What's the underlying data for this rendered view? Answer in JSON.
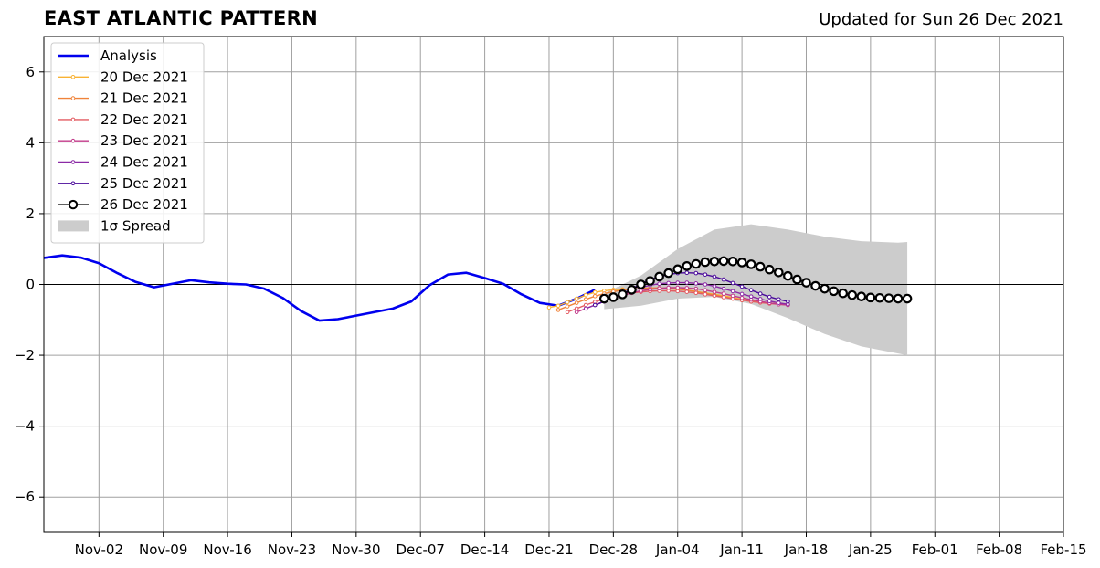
{
  "title": "EAST ATLANTIC PATTERN",
  "subtitle": "Updated for Sun 26 Dec 2021",
  "chart_data": {
    "type": "line",
    "title": "EAST ATLANTIC PATTERN",
    "xlabel": "",
    "ylabel": "",
    "xlim": [
      "2021-10-27",
      "2022-02-15"
    ],
    "ylim": [
      -7,
      7
    ],
    "grid": true,
    "legend_position": "top-left",
    "x_ticks": [
      "Nov-02",
      "Nov-09",
      "Nov-16",
      "Nov-23",
      "Nov-30",
      "Dec-07",
      "Dec-14",
      "Dec-21",
      "Dec-28",
      "Jan-04",
      "Jan-11",
      "Jan-18",
      "Jan-25",
      "Feb-01",
      "Feb-08",
      "Feb-15"
    ],
    "y_ticks": [
      "−6",
      "−4",
      "−2",
      "0",
      "2",
      "4",
      "6"
    ],
    "analysis": {
      "name": "Analysis",
      "color": "#0000ee",
      "x": [
        "2021-10-27",
        "2021-10-29",
        "2021-10-31",
        "2021-11-02",
        "2021-11-04",
        "2021-11-06",
        "2021-11-08",
        "2021-11-10",
        "2021-11-12",
        "2021-11-14",
        "2021-11-16",
        "2021-11-18",
        "2021-11-20",
        "2021-11-22",
        "2021-11-24",
        "2021-11-26",
        "2021-11-28",
        "2021-11-30",
        "2021-12-02",
        "2021-12-04",
        "2021-12-06",
        "2021-12-08",
        "2021-12-10",
        "2021-12-12",
        "2021-12-14",
        "2021-12-16",
        "2021-12-18",
        "2021-12-20",
        "2021-12-22",
        "2021-12-24",
        "2021-12-26"
      ],
      "y": [
        0.75,
        0.82,
        0.76,
        0.6,
        0.32,
        0.07,
        -0.08,
        0.02,
        0.12,
        0.06,
        0.02,
        0.0,
        -0.12,
        -0.38,
        -0.75,
        -1.02,
        -0.98,
        -0.88,
        -0.78,
        -0.68,
        -0.48,
        -0.02,
        0.28,
        0.33,
        0.18,
        0.02,
        -0.28,
        -0.52,
        -0.6,
        -0.4,
        -0.15
      ]
    },
    "forecasts": [
      {
        "name": "20 Dec 2021",
        "color": "#f9b233",
        "x0": "2021-12-21",
        "y": [
          -0.65,
          -0.6,
          -0.5,
          -0.4,
          -0.3,
          -0.22,
          -0.18,
          -0.15,
          -0.14,
          -0.13,
          -0.12,
          -0.12,
          -0.11,
          -0.12,
          -0.14,
          -0.16,
          -0.2,
          -0.24,
          -0.28,
          -0.32,
          -0.37,
          -0.42,
          -0.46,
          -0.5,
          -0.53,
          -0.55,
          -0.56
        ]
      },
      {
        "name": "21 Dec 2021",
        "color": "#f0833a",
        "x0": "2021-12-22",
        "y": [
          -0.72,
          -0.62,
          -0.52,
          -0.42,
          -0.33,
          -0.26,
          -0.2,
          -0.16,
          -0.13,
          -0.11,
          -0.1,
          -0.1,
          -0.11,
          -0.13,
          -0.16,
          -0.2,
          -0.25,
          -0.3,
          -0.35,
          -0.4,
          -0.44,
          -0.48,
          -0.51,
          -0.53,
          -0.55,
          -0.56
        ]
      },
      {
        "name": "22 Dec 2021",
        "color": "#e35b62",
        "x0": "2021-12-23",
        "y": [
          -0.78,
          -0.68,
          -0.58,
          -0.49,
          -0.41,
          -0.34,
          -0.28,
          -0.24,
          -0.21,
          -0.19,
          -0.18,
          -0.18,
          -0.19,
          -0.21,
          -0.24,
          -0.28,
          -0.32,
          -0.36,
          -0.4,
          -0.44,
          -0.48,
          -0.51,
          -0.54,
          -0.56,
          -0.58
        ]
      },
      {
        "name": "23 Dec 2021",
        "color": "#c23a8a",
        "x0": "2021-12-24",
        "y": [
          -0.78,
          -0.68,
          -0.58,
          -0.48,
          -0.39,
          -0.31,
          -0.24,
          -0.18,
          -0.14,
          -0.11,
          -0.09,
          -0.09,
          -0.1,
          -0.12,
          -0.16,
          -0.21,
          -0.26,
          -0.32,
          -0.38,
          -0.43,
          -0.48,
          -0.52,
          -0.56,
          -0.58
        ]
      },
      {
        "name": "24 Dec 2021",
        "color": "#8b2aa6",
        "x0": "2021-12-25",
        "y": [
          -0.68,
          -0.58,
          -0.48,
          -0.38,
          -0.28,
          -0.18,
          -0.09,
          -0.02,
          0.02,
          0.04,
          0.05,
          0.05,
          0.03,
          0.0,
          -0.05,
          -0.12,
          -0.19,
          -0.27,
          -0.34,
          -0.41,
          -0.47,
          -0.52,
          -0.56
        ]
      },
      {
        "name": "25 Dec 2021",
        "color": "#4a0a9a",
        "x0": "2021-12-26",
        "y": [
          -0.58,
          -0.48,
          -0.38,
          -0.26,
          -0.12,
          0.02,
          0.14,
          0.22,
          0.28,
          0.32,
          0.33,
          0.32,
          0.28,
          0.22,
          0.14,
          0.04,
          -0.06,
          -0.16,
          -0.26,
          -0.35,
          -0.42,
          -0.48
        ]
      }
    ],
    "latest": {
      "name": "26 Dec 2021",
      "color": "#000000",
      "x0": "2021-12-27",
      "y": [
        -0.4,
        -0.36,
        -0.28,
        -0.15,
        0.0,
        0.1,
        0.22,
        0.32,
        0.43,
        0.52,
        0.58,
        0.63,
        0.65,
        0.66,
        0.65,
        0.62,
        0.57,
        0.5,
        0.42,
        0.34,
        0.24,
        0.14,
        0.05,
        -0.04,
        -0.12,
        -0.19,
        -0.25,
        -0.3,
        -0.34,
        -0.37,
        -0.38,
        -0.39,
        -0.4,
        -0.4
      ]
    },
    "spread": {
      "name": "1σ Spread",
      "color": "#cccccc",
      "x": [
        "2021-12-27",
        "2021-12-31",
        "2022-01-04",
        "2022-01-08",
        "2022-01-12",
        "2022-01-16",
        "2022-01-20",
        "2022-01-24",
        "2022-01-28",
        "2022-01-29"
      ],
      "upper": [
        -0.25,
        0.25,
        1.0,
        1.55,
        1.7,
        1.55,
        1.35,
        1.22,
        1.18,
        1.2
      ],
      "lower": [
        -0.7,
        -0.6,
        -0.4,
        -0.35,
        -0.55,
        -0.95,
        -1.4,
        -1.75,
        -1.95,
        -2.0
      ]
    }
  }
}
